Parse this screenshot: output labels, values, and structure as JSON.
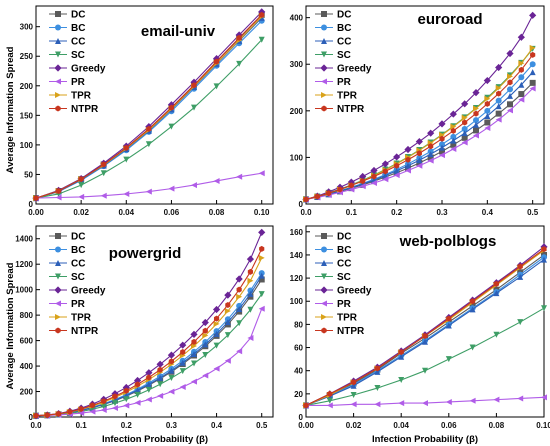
{
  "figure": {
    "ylabel": "Average Information Spread",
    "xlabel": "Infection Probability  (β)"
  },
  "series_styles": [
    {
      "name": "DC",
      "color": "#5a5a5a",
      "marker": "square"
    },
    {
      "name": "BC",
      "color": "#3d8fe0",
      "marker": "circle"
    },
    {
      "name": "CC",
      "color": "#2c5fb8",
      "marker": "triangle-up"
    },
    {
      "name": "SC",
      "color": "#3e9e66",
      "marker": "triangle-down"
    },
    {
      "name": "Greedy",
      "color": "#6a2496",
      "marker": "diamond"
    },
    {
      "name": "PR",
      "color": "#b05ce8",
      "marker": "triangle-left"
    },
    {
      "name": "TPR",
      "color": "#d9a21a",
      "marker": "triangle-right"
    },
    {
      "name": "NTPR",
      "color": "#c8361f",
      "marker": "hexagon"
    }
  ],
  "chart_data": [
    {
      "type": "line",
      "title": "email-univ",
      "x": [
        0,
        0.01,
        0.02,
        0.03,
        0.04,
        0.05,
        0.06,
        0.07,
        0.08,
        0.09,
        0.1
      ],
      "xlim": [
        0,
        0.105
      ],
      "ylim": [
        0,
        335
      ],
      "xticks": [
        "0.00",
        "0.02",
        "0.04",
        "0.06",
        "0.08",
        "0.10"
      ],
      "yticks": [
        0,
        50,
        100,
        150,
        200,
        250,
        300
      ],
      "series": [
        {
          "name": "DC",
          "values": [
            10,
            22,
            42,
            67,
            95,
            127,
            163,
            201,
            241,
            280,
            320
          ]
        },
        {
          "name": "BC",
          "values": [
            10,
            21,
            40,
            64,
            91,
            122,
            157,
            195,
            234,
            272,
            310
          ]
        },
        {
          "name": "CC",
          "values": [
            10,
            21,
            41,
            65,
            93,
            124,
            160,
            198,
            237,
            276,
            315
          ]
        },
        {
          "name": "SC",
          "values": [
            10,
            17,
            32,
            52,
            75,
            101,
            131,
            163,
            199,
            237,
            278
          ]
        },
        {
          "name": "Greedy",
          "values": [
            10,
            23,
            43,
            69,
            98,
            131,
            168,
            206,
            246,
            286,
            325
          ]
        },
        {
          "name": "PR",
          "values": [
            10,
            11,
            12,
            14,
            17,
            21,
            26,
            32,
            39,
            46,
            52
          ]
        },
        {
          "name": "TPR",
          "values": [
            10,
            22,
            42,
            66,
            94,
            125,
            161,
            199,
            238,
            277,
            317
          ]
        },
        {
          "name": "NTPR",
          "values": [
            10,
            22,
            42,
            67,
            95,
            127,
            163,
            201,
            241,
            281,
            320
          ]
        }
      ]
    },
    {
      "type": "line",
      "title": "euroroad",
      "x": [
        0,
        0.025,
        0.05,
        0.075,
        0.1,
        0.125,
        0.15,
        0.175,
        0.2,
        0.225,
        0.25,
        0.275,
        0.3,
        0.325,
        0.35,
        0.375,
        0.4,
        0.425,
        0.45,
        0.475,
        0.5
      ],
      "xlim": [
        0,
        0.525
      ],
      "ylim": [
        0,
        425
      ],
      "xticks": [
        "0.0",
        "0.1",
        "0.2",
        "0.3",
        "0.4",
        "0.5"
      ],
      "yticks": [
        0,
        100,
        200,
        300,
        400
      ],
      "series": [
        {
          "name": "DC",
          "values": [
            10,
            15,
            21,
            27,
            34,
            41,
            49,
            58,
            67,
            77,
            88,
            100,
            113,
            127,
            142,
            158,
            175,
            194,
            214,
            236,
            260
          ]
        },
        {
          "name": "BC",
          "values": [
            10,
            15,
            21,
            28,
            36,
            44,
            53,
            63,
            74,
            86,
            99,
            113,
            128,
            144,
            161,
            180,
            200,
            222,
            246,
            272,
            300
          ]
        },
        {
          "name": "CC",
          "values": [
            10,
            15,
            21,
            28,
            35,
            43,
            51,
            61,
            71,
            82,
            94,
            107,
            121,
            136,
            152,
            170,
            189,
            210,
            232,
            256,
            283
          ]
        },
        {
          "name": "SC",
          "values": [
            10,
            16,
            24,
            32,
            41,
            51,
            62,
            74,
            87,
            101,
            116,
            132,
            149,
            167,
            186,
            206,
            228,
            251,
            276,
            303,
            333
          ]
        },
        {
          "name": "Greedy",
          "values": [
            10,
            17,
            26,
            36,
            47,
            59,
            72,
            86,
            101,
            117,
            134,
            152,
            172,
            193,
            215,
            239,
            265,
            293,
            323,
            358,
            405
          ]
        },
        {
          "name": "PR",
          "values": [
            10,
            14,
            19,
            25,
            31,
            38,
            45,
            53,
            62,
            72,
            82,
            93,
            105,
            118,
            132,
            147,
            163,
            181,
            201,
            224,
            248
          ]
        },
        {
          "name": "TPR",
          "values": [
            10,
            16,
            23,
            31,
            40,
            50,
            61,
            73,
            86,
            100,
            115,
            131,
            148,
            166,
            185,
            205,
            226,
            249,
            274,
            302,
            335
          ]
        },
        {
          "name": "NTPR",
          "values": [
            10,
            16,
            23,
            31,
            40,
            49,
            59,
            70,
            82,
            95,
            109,
            124,
            140,
            157,
            175,
            194,
            215,
            237,
            261,
            288,
            320
          ]
        }
      ]
    },
    {
      "type": "line",
      "title": "powergrid",
      "x": [
        0,
        0.025,
        0.05,
        0.075,
        0.1,
        0.125,
        0.15,
        0.175,
        0.2,
        0.225,
        0.25,
        0.275,
        0.3,
        0.325,
        0.35,
        0.375,
        0.4,
        0.425,
        0.45,
        0.475,
        0.5
      ],
      "xlim": [
        0,
        0.525
      ],
      "ylim": [
        0,
        1500
      ],
      "xticks": [
        "0.0",
        "0.1",
        "0.2",
        "0.3",
        "0.4",
        "0.5"
      ],
      "yticks": [
        0,
        200,
        400,
        600,
        800,
        1000,
        1200,
        1400
      ],
      "series": [
        {
          "name": "DC",
          "values": [
            10,
            14,
            21,
            33,
            50,
            72,
            98,
            128,
            164,
            204,
            250,
            300,
            355,
            416,
            483,
            556,
            637,
            727,
            828,
            945,
            1080
          ]
        },
        {
          "name": "BC",
          "values": [
            10,
            14,
            22,
            35,
            53,
            76,
            104,
            137,
            175,
            218,
            267,
            320,
            378,
            442,
            512,
            589,
            674,
            768,
            873,
            993,
            1130
          ]
        },
        {
          "name": "CC",
          "values": [
            10,
            14,
            21,
            34,
            51,
            73,
            100,
            131,
            168,
            210,
            256,
            307,
            364,
            426,
            495,
            570,
            653,
            745,
            848,
            967,
            1110
          ]
        },
        {
          "name": "SC",
          "values": [
            10,
            13,
            19,
            29,
            43,
            61,
            83,
            109,
            139,
            174,
            213,
            257,
            306,
            360,
            420,
            487,
            561,
            643,
            736,
            842,
            965
          ]
        },
        {
          "name": "Greedy",
          "values": [
            10,
            16,
            27,
            45,
            70,
            101,
            139,
            183,
            232,
            287,
            348,
            414,
            486,
            564,
            649,
            742,
            844,
            957,
            1084,
            1240,
            1450
          ]
        },
        {
          "name": "PR",
          "values": [
            10,
            12,
            16,
            22,
            31,
            42,
            55,
            71,
            90,
            112,
            137,
            166,
            199,
            236,
            278,
            326,
            380,
            442,
            516,
            620,
            850
          ]
        },
        {
          "name": "TPR",
          "values": [
            10,
            15,
            24,
            39,
            60,
            86,
            117,
            153,
            195,
            242,
            294,
            351,
            414,
            483,
            558,
            640,
            731,
            832,
            944,
            1070,
            1250
          ]
        },
        {
          "name": "NTPR",
          "values": [
            10,
            15,
            25,
            41,
            63,
            91,
            124,
            162,
            206,
            256,
            311,
            371,
            437,
            510,
            590,
            677,
            773,
            880,
            1000,
            1140,
            1320
          ]
        }
      ]
    },
    {
      "type": "line",
      "title": "web-polblogs",
      "x": [
        0,
        0.01,
        0.02,
        0.03,
        0.04,
        0.05,
        0.06,
        0.07,
        0.08,
        0.09,
        0.1
      ],
      "xlim": [
        0,
        0.1
      ],
      "ylim": [
        0,
        165
      ],
      "xticks": [
        "0.00",
        "0.02",
        "0.04",
        "0.06",
        "0.08",
        "0.10"
      ],
      "yticks": [
        0,
        20,
        40,
        60,
        80,
        100,
        120,
        140,
        160
      ],
      "series": [
        {
          "name": "DC",
          "values": [
            10,
            19,
            29,
            41,
            55,
            68,
            82,
            96,
            110,
            125,
            140
          ]
        },
        {
          "name": "BC",
          "values": [
            10,
            18,
            28,
            40,
            53,
            66,
            80,
            94,
            108,
            123,
            138
          ]
        },
        {
          "name": "CC",
          "values": [
            10,
            18,
            27,
            39,
            52,
            65,
            79,
            93,
            107,
            121,
            136
          ]
        },
        {
          "name": "SC",
          "values": [
            10,
            14,
            19,
            25,
            32,
            40,
            50,
            60,
            71,
            82,
            94
          ]
        },
        {
          "name": "Greedy",
          "values": [
            10,
            20,
            31,
            43,
            57,
            71,
            86,
            101,
            116,
            131,
            147
          ]
        },
        {
          "name": "PR",
          "values": [
            10,
            10,
            11,
            11,
            12,
            12,
            13,
            14,
            15,
            16,
            17
          ]
        },
        {
          "name": "TPR",
          "values": [
            10,
            19,
            30,
            42,
            56,
            70,
            84,
            99,
            114,
            129,
            144
          ]
        },
        {
          "name": "NTPR",
          "values": [
            10,
            20,
            30,
            42,
            56,
            70,
            85,
            100,
            115,
            130,
            145
          ]
        }
      ]
    }
  ]
}
